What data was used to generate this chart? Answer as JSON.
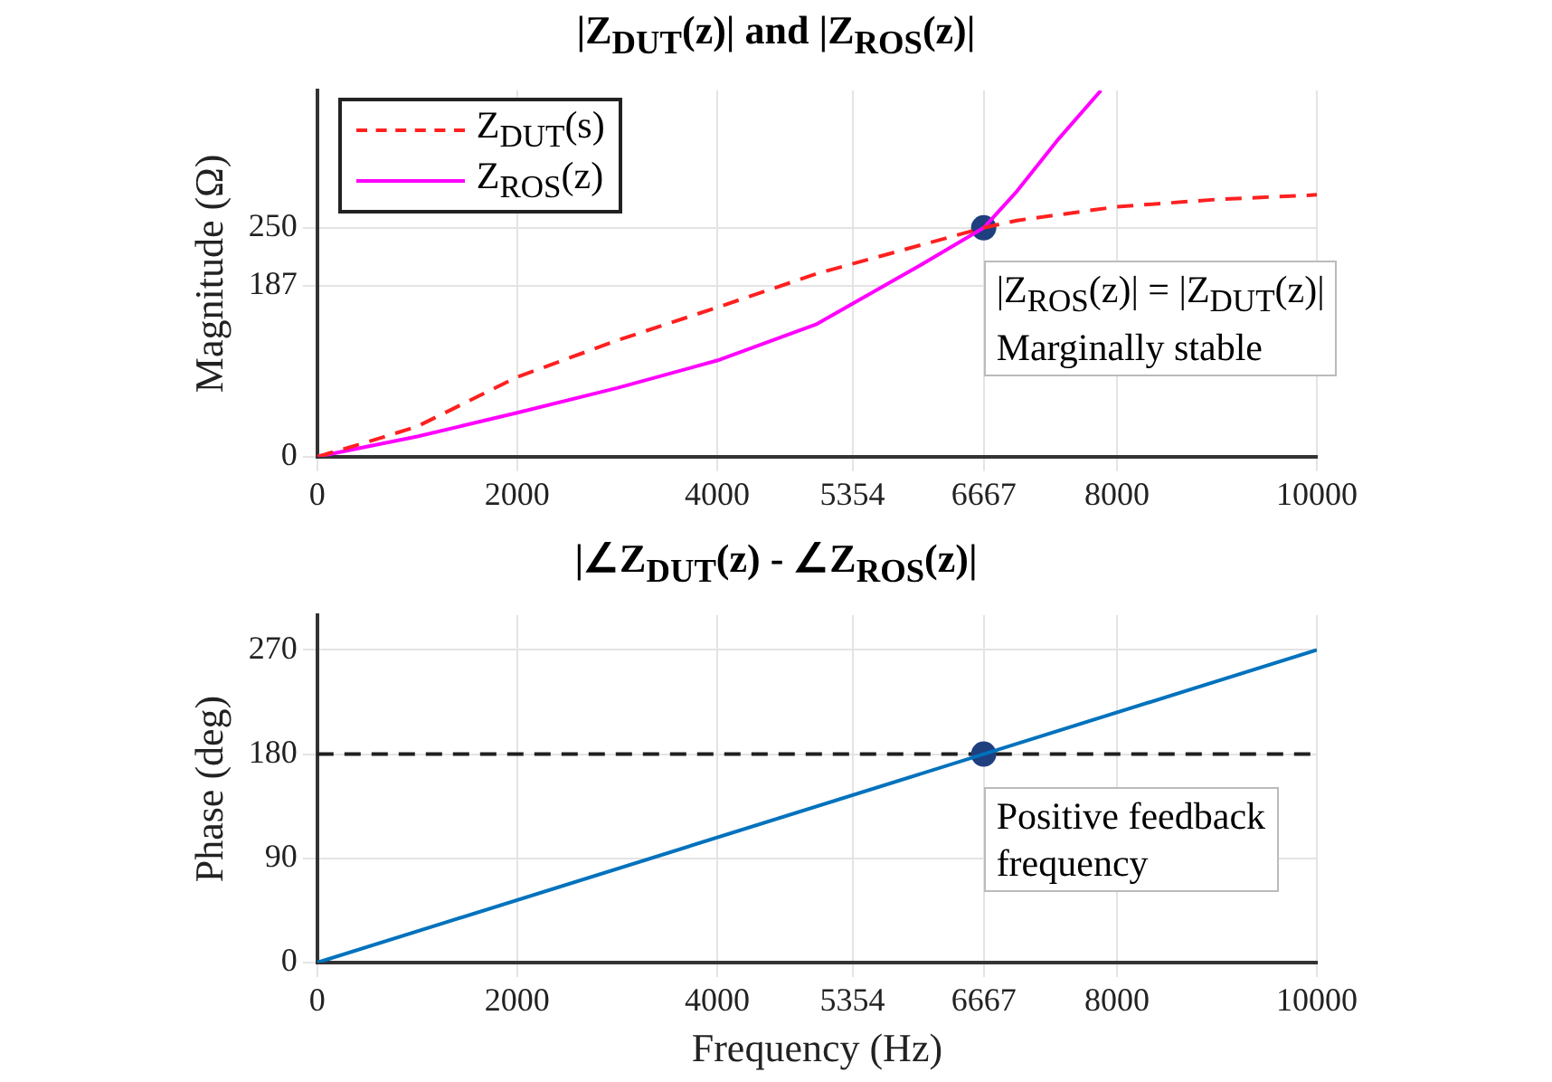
{
  "chart_data": [
    {
      "type": "line",
      "title": "|Z$_{DUT}$(z)| and |Z$_{ROS}$(z)|",
      "ylabel": "Magnitude (Ω)",
      "xlim": [
        0,
        10000
      ],
      "xticks": [
        0,
        2000,
        4000,
        5354,
        6667,
        8000,
        10000
      ],
      "ylim": [
        0,
        400
      ],
      "yticks": [
        0,
        187,
        250
      ],
      "grid": true,
      "legend": "top left",
      "series": [
        {
          "name": "Z$_{DUT}$(s)",
          "color": "#ff2020",
          "line_style": "dashed",
          "x": [
            0,
            500,
            1000,
            2000,
            3000,
            4000,
            5000,
            6000,
            6667,
            7000,
            8000,
            9000,
            10000
          ],
          "values": [
            0,
            16,
            33,
            87,
            127,
            163,
            200,
            230,
            250,
            258,
            273,
            281,
            286
          ]
        },
        {
          "name": "Z$_{ROS}$(z)",
          "color": "#ff00ff",
          "line_style": "solid",
          "x": [
            0,
            1000,
            2000,
            3000,
            4000,
            5000,
            5354,
            6000,
            6667,
            7000,
            7400,
            7840
          ],
          "values": [
            0,
            22,
            48,
            75,
            105,
            145,
            167,
            207,
            250,
            290,
            345,
            400
          ]
        },
        {
          "type": "scatter",
          "color": "#1f3f7f",
          "marker": "circle",
          "x": [
            6667
          ],
          "values": [
            250
          ]
        }
      ],
      "annotations": [
        {
          "text": "|Z$_{ROS}$(z)| = |Z$_{DUT}$(z)|\nMarginally stable",
          "x": 6667,
          "y": 250
        }
      ]
    },
    {
      "type": "line",
      "title": "|∠Z$_{DUT}$(z) - ∠Z$_{ROS}$(z)|",
      "xlabel": "Frequency (Hz)",
      "ylabel": "Phase (deg)",
      "xlim": [
        0,
        10000
      ],
      "xticks": [
        0,
        2000,
        4000,
        5354,
        6667,
        8000,
        10000
      ],
      "ylim": [
        0,
        300
      ],
      "yticks": [
        0,
        90,
        180,
        270
      ],
      "grid": true,
      "series": [
        {
          "color": "#0072bd",
          "line_style": "solid",
          "x": [
            0,
            10000
          ],
          "values": [
            0,
            270
          ]
        },
        {
          "type": "scatter",
          "color": "#1f3f7f",
          "marker": "circle",
          "x": [
            6667
          ],
          "values": [
            180
          ]
        }
      ],
      "ref_lines": [
        {
          "axis": "y",
          "value": 180,
          "color": "#202020",
          "line_style": "dashed"
        }
      ],
      "annotations": [
        {
          "text": "Positive feedback\nfrequency",
          "x": 6667,
          "y": 180
        }
      ]
    }
  ]
}
